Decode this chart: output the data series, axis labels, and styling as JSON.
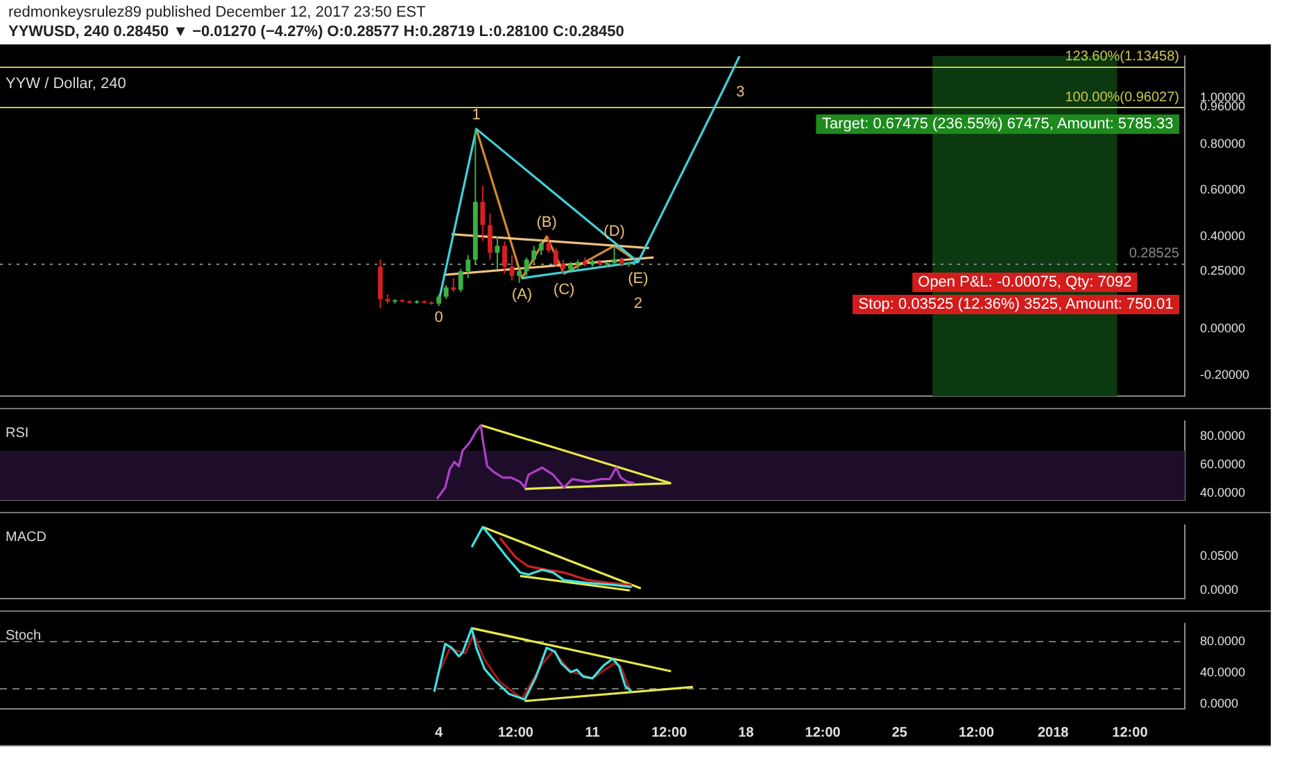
{
  "chart_data": [
    {
      "type": "candlestick",
      "title": "redmonkeysrulez89 published December 12, 2017 23:50 EST",
      "subtitle": "YYWUSD, 240 0.28450 ▼ −0.01270 (−4.27%) O:0.28577 H:0.28719 L:0.28100 C:0.28450",
      "annotations": [
        "YYW / Dollar, 240",
        "Target: 0.67475 (236.55%) 67475, Amount: 5785.33",
        "Open P&L: -0.00075, Qty: 7092",
        "Stop: 0.03525 (12.36%) 3525, Amount: 750.01",
        {
          "text": "0",
          "x": "2017-12-04T00:00",
          "y": 0.12
        },
        {
          "text": "1",
          "x": "2017-12-05T17:00",
          "y": 0.865
        },
        {
          "text": "(E)",
          "x": "2017-12-13T02:00",
          "y": 0.29
        },
        {
          "text": "2",
          "x": "2017-12-13T02:00",
          "y": 0.29
        },
        {
          "text": "3",
          "x": "2017-12-16T22:00",
          "y": 1.025
        },
        {
          "text": "(A)",
          "x": "2017-12-07T19:00",
          "y": 0.22
        },
        {
          "text": "(B)",
          "x": "2017-12-08T22:00",
          "y": 0.4
        },
        {
          "text": "(C)",
          "x": "2017-12-09T17:00",
          "y": 0.24
        },
        {
          "text": "(D)",
          "x": "2017-12-12T00:00",
          "y": 0.36
        }
      ],
      "x": [
        "2017-12-01T08:00",
        "2017-12-01T16:00",
        "2017-12-02T00:00",
        "2017-12-02T08:00",
        "2017-12-02T16:00",
        "2017-12-03T00:00",
        "2017-12-03T08:00",
        "2017-12-03T16:00",
        "2017-12-04T00:00",
        "2017-12-04T08:00",
        "2017-12-04T16:00",
        "2017-12-05T00:00",
        "2017-12-05T08:00",
        "2017-12-05T16:00",
        "2017-12-06T00:00",
        "2017-12-06T08:00",
        "2017-12-06T16:00",
        "2017-12-07T00:00",
        "2017-12-07T08:00",
        "2017-12-07T16:00",
        "2017-12-08T00:00",
        "2017-12-08T08:00",
        "2017-12-08T16:00",
        "2017-12-09T00:00",
        "2017-12-09T08:00",
        "2017-12-09T16:00",
        "2017-12-10T00:00",
        "2017-12-10T08:00",
        "2017-12-10T16:00",
        "2017-12-11T00:00",
        "2017-12-11T08:00",
        "2017-12-11T16:00",
        "2017-12-12T00:00",
        "2017-12-12T08:00",
        "2017-12-12T16:00"
      ],
      "ohlc": [
        [
          0.27,
          0.3,
          0.09,
          0.13
        ],
        [
          0.13,
          0.15,
          0.11,
          0.12
        ],
        [
          0.12,
          0.13,
          0.11,
          0.125
        ],
        [
          0.125,
          0.13,
          0.115,
          0.12
        ],
        [
          0.12,
          0.125,
          0.11,
          0.115
        ],
        [
          0.115,
          0.125,
          0.11,
          0.12
        ],
        [
          0.12,
          0.125,
          0.11,
          0.115
        ],
        [
          0.115,
          0.12,
          0.105,
          0.11
        ],
        [
          0.11,
          0.15,
          0.1,
          0.14
        ],
        [
          0.14,
          0.19,
          0.13,
          0.18
        ],
        [
          0.18,
          0.22,
          0.16,
          0.17
        ],
        [
          0.17,
          0.26,
          0.16,
          0.25
        ],
        [
          0.25,
          0.32,
          0.22,
          0.3
        ],
        [
          0.3,
          0.865,
          0.28,
          0.55
        ],
        [
          0.55,
          0.62,
          0.38,
          0.45
        ],
        [
          0.45,
          0.5,
          0.3,
          0.33
        ],
        [
          0.33,
          0.4,
          0.26,
          0.36
        ],
        [
          0.36,
          0.38,
          0.24,
          0.27
        ],
        [
          0.27,
          0.32,
          0.21,
          0.23
        ],
        [
          0.23,
          0.27,
          0.2,
          0.25
        ],
        [
          0.25,
          0.31,
          0.23,
          0.3
        ],
        [
          0.3,
          0.36,
          0.28,
          0.34
        ],
        [
          0.34,
          0.39,
          0.32,
          0.37
        ],
        [
          0.37,
          0.4,
          0.33,
          0.34
        ],
        [
          0.34,
          0.35,
          0.27,
          0.28
        ],
        [
          0.28,
          0.3,
          0.24,
          0.26
        ],
        [
          0.26,
          0.29,
          0.25,
          0.28
        ],
        [
          0.28,
          0.3,
          0.26,
          0.29
        ],
        [
          0.29,
          0.31,
          0.27,
          0.28
        ],
        [
          0.28,
          0.3,
          0.27,
          0.29
        ],
        [
          0.29,
          0.3,
          0.27,
          0.28
        ],
        [
          0.28,
          0.29,
          0.27,
          0.285
        ],
        [
          0.285,
          0.36,
          0.28,
          0.3
        ],
        [
          0.3,
          0.31,
          0.27,
          0.28
        ],
        [
          0.28,
          0.29,
          0.27,
          0.285
        ]
      ],
      "colors": [
        "#d42020",
        "#d42020",
        "#3cb043",
        "#d42020",
        "#d42020",
        "#3cb043",
        "#d42020",
        "#d42020",
        "#3cb043",
        "#3cb043",
        "#d42020",
        "#3cb043",
        "#3cb043",
        "#3cb043",
        "#d42020",
        "#d42020",
        "#3cb043",
        "#d42020",
        "#d42020",
        "#3cb043",
        "#3cb043",
        "#3cb043",
        "#3cb043",
        "#d42020",
        "#d42020",
        "#d42020",
        "#3cb043",
        "#3cb043",
        "#d42020",
        "#3cb043",
        "#d42020",
        "#3cb043",
        "#3cb043",
        "#d42020",
        "#3cb043"
      ],
      "series": [
        {
          "type": "line",
          "color": "#40d0d8",
          "x": [
            "2017-12-04T00:00",
            "2017-12-05T17:00",
            "2017-12-13T02:00",
            "2017-12-16T22:00",
            "2017-12-17T17:00"
          ],
          "values": [
            0.12,
            0.865,
            0.29,
            1.025,
            1.18
          ]
        },
        {
          "type": "line",
          "color": "#40d0d8",
          "x": [
            "2017-12-07T19:00",
            "2017-12-13T02:00"
          ],
          "values": [
            0.22,
            0.29
          ]
        },
        {
          "type": "line",
          "color": "#f0c080",
          "x": [
            "2017-12-04T14:00",
            "2017-12-13T14:00"
          ],
          "values": [
            0.41,
            0.35
          ]
        },
        {
          "type": "line",
          "color": "#f0c080",
          "x": [
            "2017-12-04T07:00",
            "2017-12-13T19:00"
          ],
          "values": [
            0.235,
            0.31
          ]
        },
        {
          "type": "line",
          "color": "#d08a30",
          "x": [
            "2017-12-05T17:00",
            "2017-12-07T19:00",
            "2017-12-08T22:00",
            "2017-12-09T17:00",
            "2017-12-12T00:00",
            "2017-12-13T02:00"
          ],
          "values": [
            0.865,
            0.22,
            0.4,
            0.24,
            0.36,
            0.29
          ]
        }
      ],
      "ref_lines": [
        {
          "axis": "y",
          "value": 1.13458,
          "label": "123.60%(1.13458)",
          "color": "#c8c850"
        },
        {
          "axis": "y",
          "value": 0.96027,
          "label": "100.00%(0.96027)",
          "color": "#c8c850"
        },
        {
          "axis": "y",
          "value": 0.28525,
          "label": "0.28525",
          "color": "#888888",
          "line_style": "dotted"
        }
      ],
      "bands": [
        {
          "axis": "x",
          "from": "2017-12-26T12:00",
          "to": "2018-01-03T22:00",
          "color": "#0b3a10"
        }
      ],
      "xlim": [
        "2017-11-14",
        "2018-01-07"
      ],
      "ylim": [
        -0.29,
        1.18
      ],
      "yticks": [
        {
          "value": -0.2,
          "label": "-0.20000"
        },
        {
          "value": 0,
          "label": "0.00000"
        },
        {
          "value": 0.25,
          "label": "0.25000"
        },
        {
          "value": 0.4,
          "label": "0.40000"
        },
        {
          "value": 0.6,
          "label": "0.60000"
        },
        {
          "value": 0.8,
          "label": "0.80000"
        },
        {
          "value": 0.96,
          "label": "0.96000"
        },
        {
          "value": 1,
          "label": "1.00000"
        }
      ],
      "tick_labels": "y",
      "marker": "none"
    },
    {
      "type": "line",
      "title": "RSI",
      "series": [
        {
          "color": "#b040c8",
          "x": [
            "2017-12-03T22:00",
            "2017-12-04T07:00",
            "2017-12-04T12:00",
            "2017-12-04T17:00",
            "2017-12-04T22:00",
            "2017-12-05T02:00",
            "2017-12-05T10:00",
            "2017-12-05T17:00",
            "2017-12-05T22:00",
            "2017-12-06T00:00",
            "2017-12-06T05:00",
            "2017-12-06T12:00",
            "2017-12-06T22:00",
            "2017-12-07T07:00",
            "2017-12-07T17:00",
            "2017-12-07T22:00",
            "2017-12-08T02:00",
            "2017-12-08T17:00",
            "2017-12-09T05:00",
            "2017-12-09T17:00",
            "2017-12-10T02:00",
            "2017-12-10T19:00",
            "2017-12-11T10:00",
            "2017-12-11T19:00",
            "2017-12-12T02:00",
            "2017-12-12T07:00",
            "2017-12-12T14:00",
            "2017-12-12T22:00"
          ],
          "values": [
            36,
            44,
            57,
            62,
            59,
            70,
            76,
            84,
            88,
            78,
            59,
            55,
            51,
            51,
            48,
            44,
            53,
            58,
            53,
            44,
            50,
            48,
            50,
            50,
            58,
            51,
            48,
            47
          ]
        },
        {
          "color": "#e8e84a",
          "x": [
            "2017-12-05T22:00",
            "2017-12-14T14:00"
          ],
          "values": [
            88,
            47
          ]
        },
        {
          "color": "#e8e84a",
          "x": [
            "2017-12-07T22:00",
            "2017-12-14T14:00"
          ],
          "values": [
            43,
            47
          ]
        }
      ],
      "bands": [
        {
          "axis": "y",
          "from": 35,
          "to": 70,
          "color": "#1e0d2a"
        }
      ],
      "xlim": [
        "2017-11-14",
        "2018-01-07"
      ],
      "ylim": [
        35,
        91
      ],
      "yticks": [
        {
          "value": 40,
          "label": "40.0000"
        },
        {
          "value": 60,
          "label": "60.0000"
        },
        {
          "value": 80,
          "label": "80.0000"
        }
      ],
      "tick_labels": "y",
      "marker": "none"
    },
    {
      "type": "line",
      "title": "MACD",
      "series": [
        {
          "color": "#40e0e0",
          "x": [
            "2017-12-05T12:00",
            "2017-12-06T00:00",
            "2017-12-06T12:00",
            "2017-12-07T02:00",
            "2017-12-07T17:00",
            "2017-12-08T02:00",
            "2017-12-08T17:00",
            "2017-12-09T05:00",
            "2017-12-09T17:00",
            "2017-12-10T19:00",
            "2017-12-12T00:00",
            "2017-12-12T19:00"
          ],
          "values": [
            0.063,
            0.092,
            0.073,
            0.049,
            0.026,
            0.023,
            0.03,
            0.026,
            0.015,
            0.011,
            0.008,
            0.005
          ]
        },
        {
          "color": "#d02020",
          "x": [
            "2017-12-06T19:00",
            "2017-12-07T12:00",
            "2017-12-08T02:00",
            "2017-12-08T22:00",
            "2017-12-09T17:00",
            "2017-12-10T19:00",
            "2017-12-11T19:00",
            "2017-12-12T19:00"
          ],
          "values": [
            0.076,
            0.048,
            0.035,
            0.03,
            0.026,
            0.015,
            0.011,
            0.008
          ]
        },
        {
          "color": "#e8e84a",
          "x": [
            "2017-12-06T00:00",
            "2017-12-13T05:00"
          ],
          "values": [
            0.092,
            0.003
          ]
        },
        {
          "color": "#e8e84a",
          "x": [
            "2017-12-07T17:00",
            "2017-12-12T17:00"
          ],
          "values": [
            0.021,
            0.0
          ]
        }
      ],
      "xlim": [
        "2017-11-14",
        "2018-01-07"
      ],
      "ylim": [
        -0.012,
        0.095
      ],
      "yticks": [
        {
          "value": 0,
          "label": "0.0000"
        },
        {
          "value": 0.05,
          "label": "0.0500"
        }
      ],
      "tick_labels": "y",
      "marker": "none"
    },
    {
      "type": "line",
      "title": "Stoch",
      "series": [
        {
          "color": "#40e0e0",
          "x": [
            "2017-12-03T19:00",
            "2017-12-04T07:00",
            "2017-12-04T14:00",
            "2017-12-04T22:00",
            "2017-12-05T02:00",
            "2017-12-05T12:00",
            "2017-12-05T17:00",
            "2017-12-06T02:00",
            "2017-12-06T14:00",
            "2017-12-07T05:00",
            "2017-12-07T22:00",
            "2017-12-08T10:00",
            "2017-12-08T22:00",
            "2017-12-09T07:00",
            "2017-12-09T14:00",
            "2017-12-10T00:00",
            "2017-12-10T07:00",
            "2017-12-10T14:00",
            "2017-12-11T00:00",
            "2017-12-11T12:00",
            "2017-12-11T22:00",
            "2017-12-12T05:00",
            "2017-12-12T12:00",
            "2017-12-12T19:00"
          ],
          "values": [
            16,
            77,
            72,
            61,
            66,
            97,
            72,
            45,
            29,
            13,
            6,
            34,
            72,
            67,
            52,
            41,
            44,
            35,
            33,
            49,
            58,
            49,
            23,
            16
          ]
        },
        {
          "color": "#a01818",
          "x": [
            "2017-12-04T02:00",
            "2017-12-04T12:00",
            "2017-12-05T05:00",
            "2017-12-05T14:00",
            "2017-12-06T02:00",
            "2017-12-06T19:00",
            "2017-12-07T19:00",
            "2017-12-08T17:00",
            "2017-12-09T05:00",
            "2017-12-10T00:00",
            "2017-12-11T00:00",
            "2017-12-12T00:00",
            "2017-12-12T07:00",
            "2017-12-12T17:00"
          ],
          "values": [
            45,
            71,
            65,
            89,
            57,
            28,
            7,
            51,
            68,
            42,
            33,
            52,
            48,
            19
          ]
        },
        {
          "color": "#e8e84a",
          "x": [
            "2017-12-05T12:00",
            "2017-12-14T14:00"
          ],
          "values": [
            97,
            42
          ]
        },
        {
          "color": "#e8e84a",
          "x": [
            "2017-12-07T22:00",
            "2017-12-15T14:00"
          ],
          "values": [
            4,
            22
          ]
        }
      ],
      "ref_lines": [
        {
          "axis": "y",
          "value": 80,
          "color": "#777777",
          "line_style": "dashed"
        },
        {
          "axis": "y",
          "value": 20,
          "color": "#777777",
          "line_style": "dashed"
        }
      ],
      "xlim": [
        "2017-11-14",
        "2018-01-07"
      ],
      "xticks": [
        {
          "value": "2017-12-04",
          "label": "4"
        },
        {
          "value": "2017-12-07T12:00",
          "label": "12:00"
        },
        {
          "value": "2017-12-11",
          "label": "11"
        },
        {
          "value": "2017-12-14T12:00",
          "label": "12:00"
        },
        {
          "value": "2017-12-18",
          "label": "18"
        },
        {
          "value": "2017-12-21T12:00",
          "label": "12:00"
        },
        {
          "value": "2017-12-25",
          "label": "25"
        },
        {
          "value": "2017-12-28T12:00",
          "label": "12:00"
        },
        "2018",
        {
          "value": "2018-01-04T12:00",
          "label": "12:00"
        }
      ],
      "ylim": [
        -6,
        103
      ],
      "yticks": [
        {
          "value": 0,
          "label": "0.0000"
        },
        {
          "value": 40,
          "label": "40.0000"
        },
        {
          "value": 80,
          "label": "80.0000"
        }
      ],
      "marker": "none"
    }
  ]
}
